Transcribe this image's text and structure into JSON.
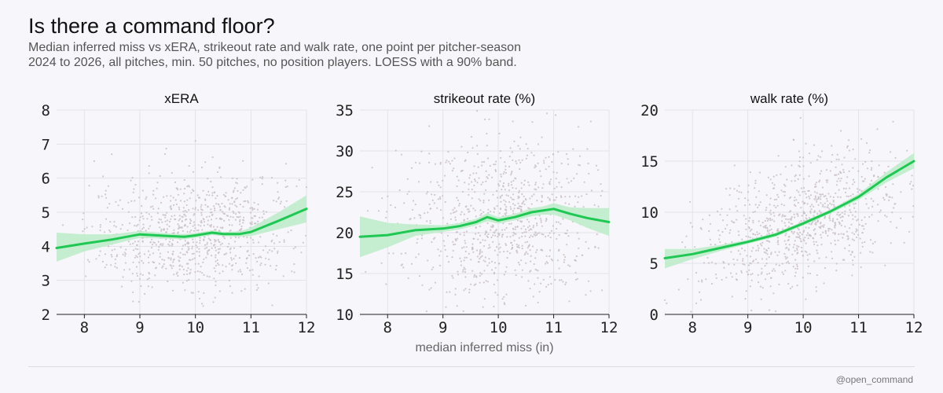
{
  "header": {
    "title": "Is there a command floor?",
    "subtitle1": "Median inferred miss vs xERA, strikeout rate and walk rate, one point per pitcher-season",
    "subtitle2": "2024 to 2026, all pitches, min. 50 pitches, no position players. LOESS with a 90% band."
  },
  "footer": {
    "credit": "@open_command"
  },
  "colors": {
    "line": "#1ec853",
    "band": "#bfeccb",
    "dots": "#c9c0c6",
    "grid": "#e2e2ea",
    "axis": "#222222"
  },
  "chart_data": [
    {
      "type": "scatter",
      "title": "xERA",
      "xlabel": "median inferred miss (in)",
      "ylabel": "",
      "xlim": [
        7.5,
        12
      ],
      "ylim": [
        2,
        8
      ],
      "xticks": [
        "8",
        "9",
        "10",
        "11",
        "12"
      ],
      "yticks": [
        "2",
        "3",
        "4",
        "5",
        "6",
        "7",
        "8"
      ],
      "grid": true,
      "loess": {
        "x": [
          7.5,
          8.0,
          8.5,
          9.0,
          9.5,
          9.8,
          10.0,
          10.3,
          10.5,
          10.8,
          11.0,
          11.5,
          12.0
        ],
        "y": [
          3.95,
          4.08,
          4.2,
          4.35,
          4.3,
          4.28,
          4.32,
          4.4,
          4.36,
          4.36,
          4.42,
          4.75,
          5.1
        ],
        "lower": [
          3.55,
          3.85,
          4.05,
          4.25,
          4.22,
          4.2,
          4.25,
          4.33,
          4.3,
          4.28,
          4.3,
          4.5,
          4.7
        ],
        "upper": [
          4.4,
          4.35,
          4.35,
          4.45,
          4.38,
          4.36,
          4.39,
          4.47,
          4.42,
          4.44,
          4.55,
          5.0,
          5.5
        ]
      },
      "scatter_cloud": {
        "n": 900,
        "x_center": 10.0,
        "x_sd": 0.95,
        "y_center": 4.4,
        "y_sd": 0.85,
        "slope": 0.12
      }
    },
    {
      "type": "scatter",
      "title": "strikeout rate (%)",
      "xlabel": "median inferred miss (in)",
      "ylabel": "",
      "xlim": [
        7.5,
        12
      ],
      "ylim": [
        10,
        35
      ],
      "xticks": [
        "8",
        "9",
        "10",
        "11",
        "12"
      ],
      "yticks": [
        "10",
        "15",
        "20",
        "25",
        "30",
        "35"
      ],
      "grid": true,
      "loess": {
        "x": [
          7.5,
          8.0,
          8.5,
          9.0,
          9.3,
          9.6,
          9.8,
          10.0,
          10.3,
          10.6,
          10.8,
          11.0,
          11.3,
          11.6,
          12.0
        ],
        "y": [
          19.5,
          19.7,
          20.3,
          20.5,
          20.8,
          21.3,
          21.9,
          21.5,
          21.9,
          22.5,
          22.7,
          22.9,
          22.3,
          21.8,
          21.3
        ],
        "lower": [
          17.0,
          18.2,
          19.6,
          20.1,
          20.4,
          20.9,
          21.4,
          21.1,
          21.5,
          22.0,
          22.2,
          22.2,
          21.5,
          20.6,
          19.6
        ],
        "upper": [
          22.0,
          21.2,
          21.0,
          20.9,
          21.2,
          21.7,
          22.4,
          21.9,
          22.3,
          23.0,
          23.2,
          23.6,
          23.1,
          23.0,
          23.0
        ]
      },
      "scatter_cloud": {
        "n": 900,
        "x_center": 10.0,
        "x_sd": 0.95,
        "y_center": 21.5,
        "y_sd": 5.0,
        "slope": 0.5
      }
    },
    {
      "type": "scatter",
      "title": "walk rate (%)",
      "xlabel": "median inferred miss (in)",
      "ylabel": "",
      "xlim": [
        7.5,
        12
      ],
      "ylim": [
        0,
        20
      ],
      "xticks": [
        "8",
        "9",
        "10",
        "11",
        "12"
      ],
      "yticks": [
        "0",
        "5",
        "10",
        "15",
        "20"
      ],
      "grid": true,
      "loess": {
        "x": [
          7.5,
          8.0,
          8.5,
          9.0,
          9.5,
          10.0,
          10.5,
          11.0,
          11.5,
          12.0
        ],
        "y": [
          5.5,
          5.9,
          6.5,
          7.1,
          7.8,
          8.9,
          10.1,
          11.5,
          13.4,
          15.0
        ],
        "lower": [
          4.5,
          5.4,
          6.2,
          6.9,
          7.6,
          8.7,
          9.9,
          11.2,
          12.9,
          14.3
        ],
        "upper": [
          6.4,
          6.4,
          6.8,
          7.3,
          8.0,
          9.1,
          10.3,
          11.8,
          13.9,
          15.8
        ]
      },
      "scatter_cloud": {
        "n": 900,
        "x_center": 10.0,
        "x_sd": 0.95,
        "y_center": 9.0,
        "y_sd": 3.2,
        "slope": 2.1
      }
    }
  ]
}
